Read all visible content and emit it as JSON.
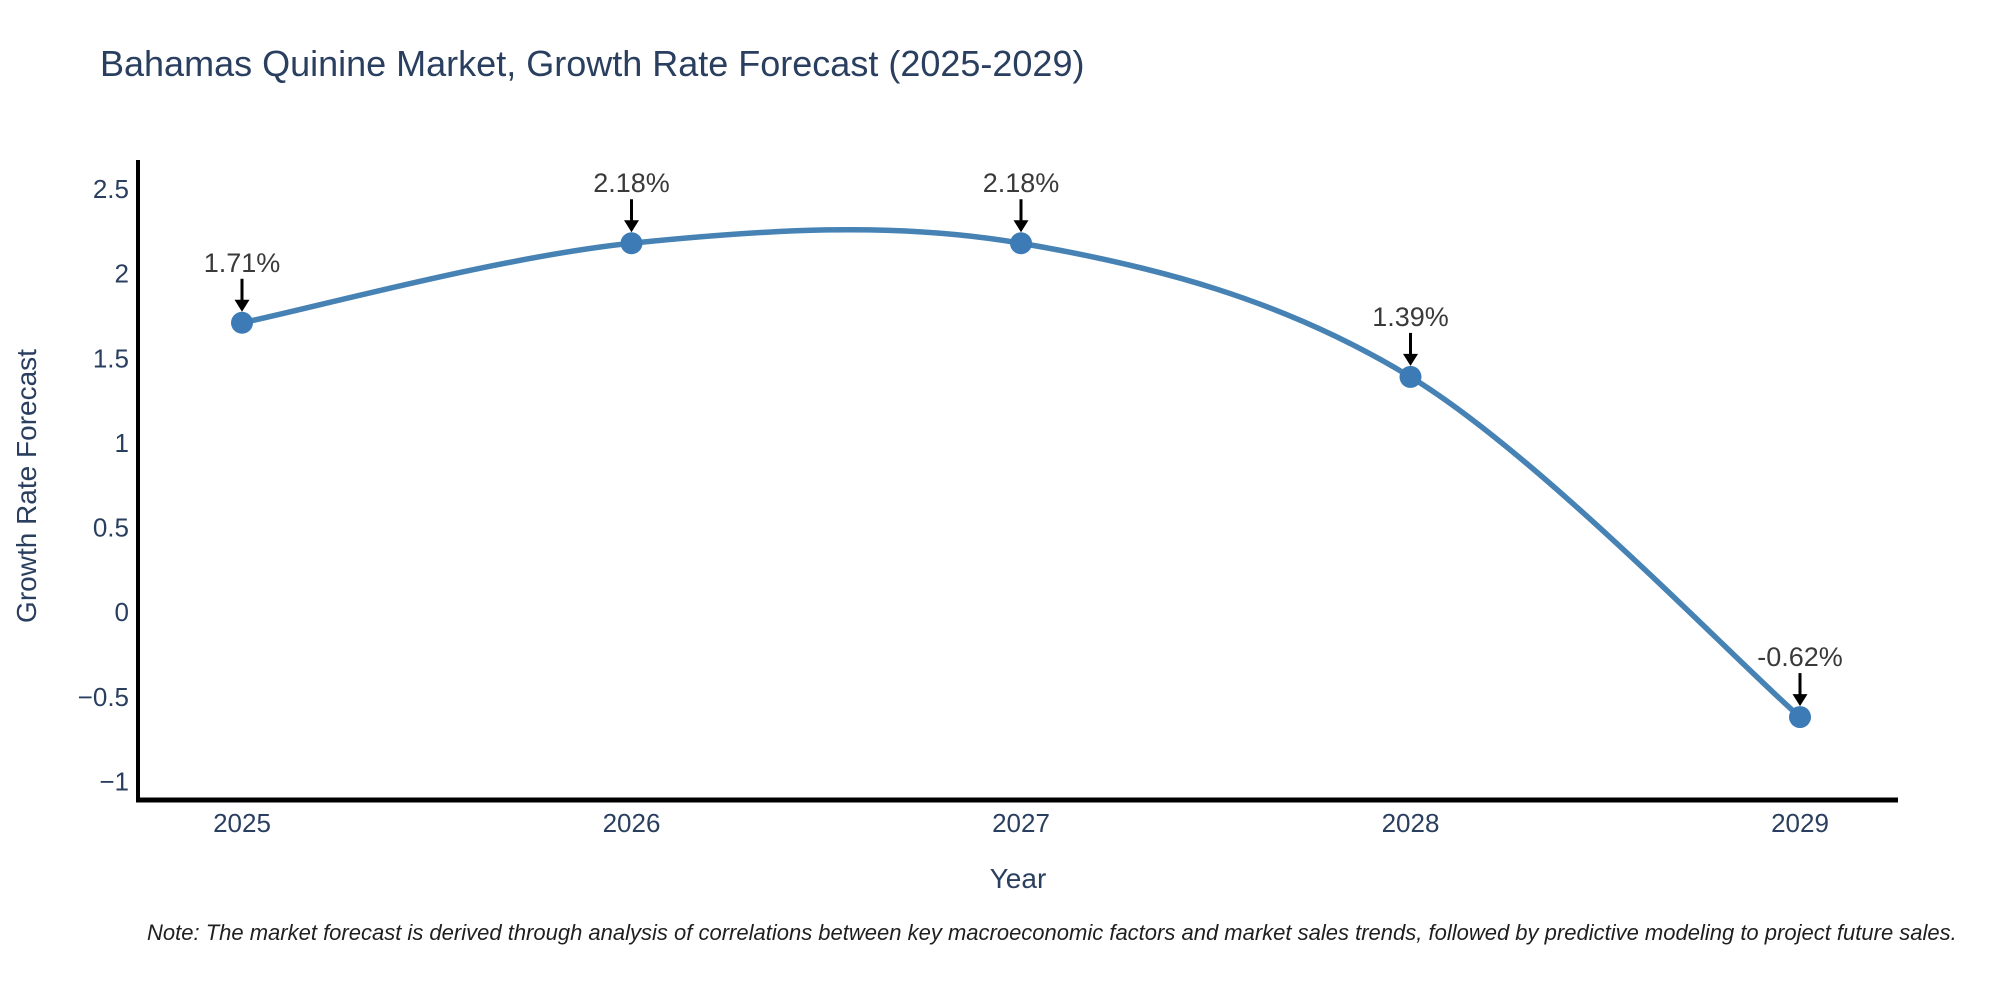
{
  "title": "Bahamas Quinine Market, Growth Rate Forecast (2025-2029)",
  "note": "Note: The market forecast is derived through analysis of correlations between key macroeconomic factors and market sales trends, followed by predictive modeling to project future sales.",
  "chart_data": {
    "type": "line",
    "line_shape": "spline",
    "title": "Bahamas Quinine Market, Growth Rate Forecast (2025-2029)",
    "xlabel": "Year",
    "ylabel": "Growth Rate Forecast",
    "categories": [
      "2025",
      "2026",
      "2027",
      "2028",
      "2029"
    ],
    "values": [
      1.71,
      2.18,
      2.18,
      1.39,
      -0.62
    ],
    "point_labels": [
      "1.71%",
      "2.18%",
      "2.18%",
      "1.39%",
      "-0.62%"
    ],
    "yticks": [
      {
        "value": -1,
        "label": "−1"
      },
      {
        "value": -0.5,
        "label": "−0.5"
      },
      {
        "value": 0,
        "label": "0"
      },
      {
        "value": 0.5,
        "label": "0.5"
      },
      {
        "value": 1,
        "label": "1"
      },
      {
        "value": 1.5,
        "label": "1.5"
      },
      {
        "value": 2,
        "label": "2"
      },
      {
        "value": 2.5,
        "label": "2.5"
      }
    ],
    "ylim": [
      -1.11,
      2.66
    ],
    "grid": false,
    "legend": "none",
    "colors": {
      "line": "#4682b4",
      "marker": "#3c7bb6",
      "axis_text": "#2a3f5f",
      "annotation_text": "#3a3a3a",
      "arrow": "#000000",
      "spine": "#000000",
      "background": "#ffffff"
    }
  }
}
